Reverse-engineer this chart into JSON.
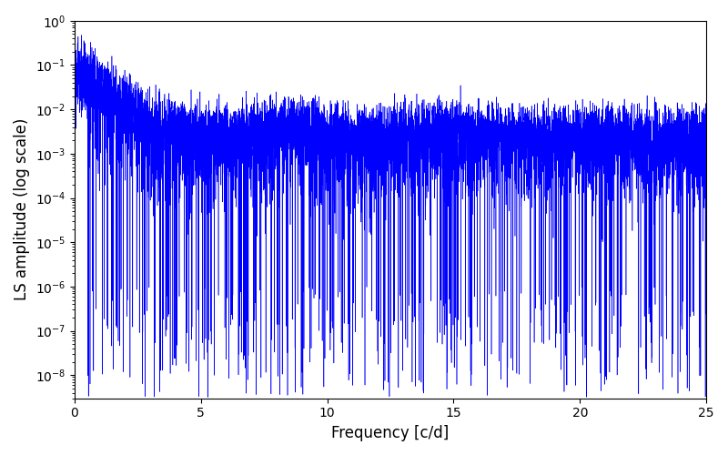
{
  "title": "",
  "xlabel": "Frequency [c/d]",
  "ylabel": "LS amplitude (log scale)",
  "xlim": [
    0,
    25
  ],
  "ylim": [
    3e-09,
    1.0
  ],
  "color": "#0000ff",
  "linewidth": 0.4,
  "figsize": [
    8.0,
    5.0
  ],
  "dpi": 100,
  "yscale": "log",
  "seed": 123,
  "n_points": 8000,
  "freq_max": 25.0,
  "background_color": "#ffffff"
}
